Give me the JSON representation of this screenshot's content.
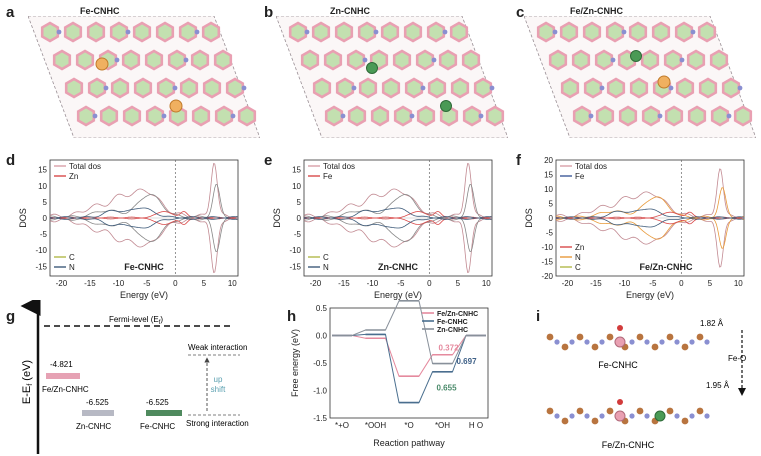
{
  "figure": {
    "panel_labels": [
      "a",
      "b",
      "c",
      "d",
      "e",
      "f",
      "g",
      "h",
      "i"
    ],
    "structure_titles": [
      "Fe-CNHC",
      "Zn-CNHC",
      "Fe/Zn-CNHC"
    ],
    "colors": {
      "carbon": "#e9a0b2",
      "nitrogen": "#8a8fd1",
      "ring_fill": "#c3e0b0",
      "fe_atom": "#f0b060",
      "zn_atom": "#4a9a55"
    }
  },
  "dos_panels": [
    {
      "id": "d",
      "inset": "Fe-CNHC",
      "legend_top": [
        "Total dos",
        "Zn"
      ],
      "legend_bottom": [
        "C",
        "N"
      ],
      "xlabel": "Energy (eV)",
      "ylabel": "DOS",
      "xticks": [
        "-20",
        "-15",
        "-10",
        "-5",
        "0",
        "5",
        "10"
      ],
      "yticks": [
        "15",
        "10",
        "5",
        "0",
        "-5",
        "-10",
        "-15"
      ]
    },
    {
      "id": "e",
      "inset": "Zn-CNHC",
      "legend_top": [
        "Total dos",
        "Fe"
      ],
      "legend_bottom": [
        "C",
        "N"
      ],
      "xlabel": "Energy (eV)",
      "ylabel": "DOS",
      "xticks": [
        "-20",
        "-15",
        "-10",
        "-5",
        "0",
        "5",
        "10"
      ],
      "yticks": [
        "15",
        "10",
        "5",
        "0",
        "-5",
        "-10",
        "-15"
      ]
    },
    {
      "id": "f",
      "inset": "Fe/Zn-CNHC",
      "legend_top": [
        "Total dos",
        "Fe"
      ],
      "legend_bottom": [
        "Zn",
        "N",
        "C"
      ],
      "xlabel": "Energy (eV)",
      "ylabel": "DOS",
      "xticks": [
        "-20",
        "-15",
        "-10",
        "-5",
        "0",
        "5",
        "10"
      ],
      "yticks": [
        "20",
        "15",
        "10",
        "5",
        "0",
        "-5",
        "-10",
        "-15",
        "-20"
      ]
    }
  ],
  "band_panel": {
    "ylabel": "E-E",
    "ylabel_sub": "f",
    "ylabel_unit": " (eV)",
    "fermi_label": "Fermi-level (E",
    "fermi_sub": "f",
    "fermi_close": ")",
    "levels": [
      {
        "value": "-4.821",
        "name": "Fe/Zn-CNHC",
        "color": "#e6a2b4"
      },
      {
        "value": "-6.525",
        "name": "Zn-CNHC",
        "color": "#b7b9c4"
      },
      {
        "value": "-6.525",
        "name": "Fe-CNHC",
        "color": "#4f8a5e"
      }
    ],
    "weak_label": "Weak interaction",
    "strong_label": "Strong interaction",
    "shift_label": [
      "up",
      "shift"
    ]
  },
  "chart_data": {
    "type": "line",
    "title": "",
    "xlabel": "Reaction pathway",
    "ylabel": "Free energy (eV)",
    "categories": [
      "*+O2",
      "*OOH",
      "*O",
      "*OH",
      "H2O"
    ],
    "ylim": [
      -1.5,
      0.5
    ],
    "yticks": [
      "0.5",
      "0.0",
      "-0.5",
      "-1.0",
      "-1.5"
    ],
    "series": [
      {
        "name": "Fe/Zn-CNHC",
        "color": "#e58a9e",
        "values": [
          0.0,
          -0.05,
          -0.74,
          -0.35,
          0.0
        ]
      },
      {
        "name": "Fe-CNHC",
        "color": "#4a6f8f",
        "values": [
          0.0,
          0.02,
          -1.22,
          -0.66,
          0.0
        ]
      },
      {
        "name": "Zn-CNHC",
        "color": "#88909a",
        "values": [
          0.0,
          0.1,
          0.63,
          -0.51,
          0.0
        ]
      }
    ],
    "annotations": [
      {
        "text": "0.372",
        "color": "#e58a9e"
      },
      {
        "text": "0.697",
        "color": "#3d5f86"
      },
      {
        "text": "0.655",
        "color": "#4a8a6a"
      }
    ]
  },
  "panel_i": {
    "top_name": "Fe-CNHC",
    "bottom_name": "Fe/Zn-CNHC",
    "len_top": "1.82 Å",
    "len_bottom": "1.95 Å",
    "bond_label": "Fe-O"
  }
}
